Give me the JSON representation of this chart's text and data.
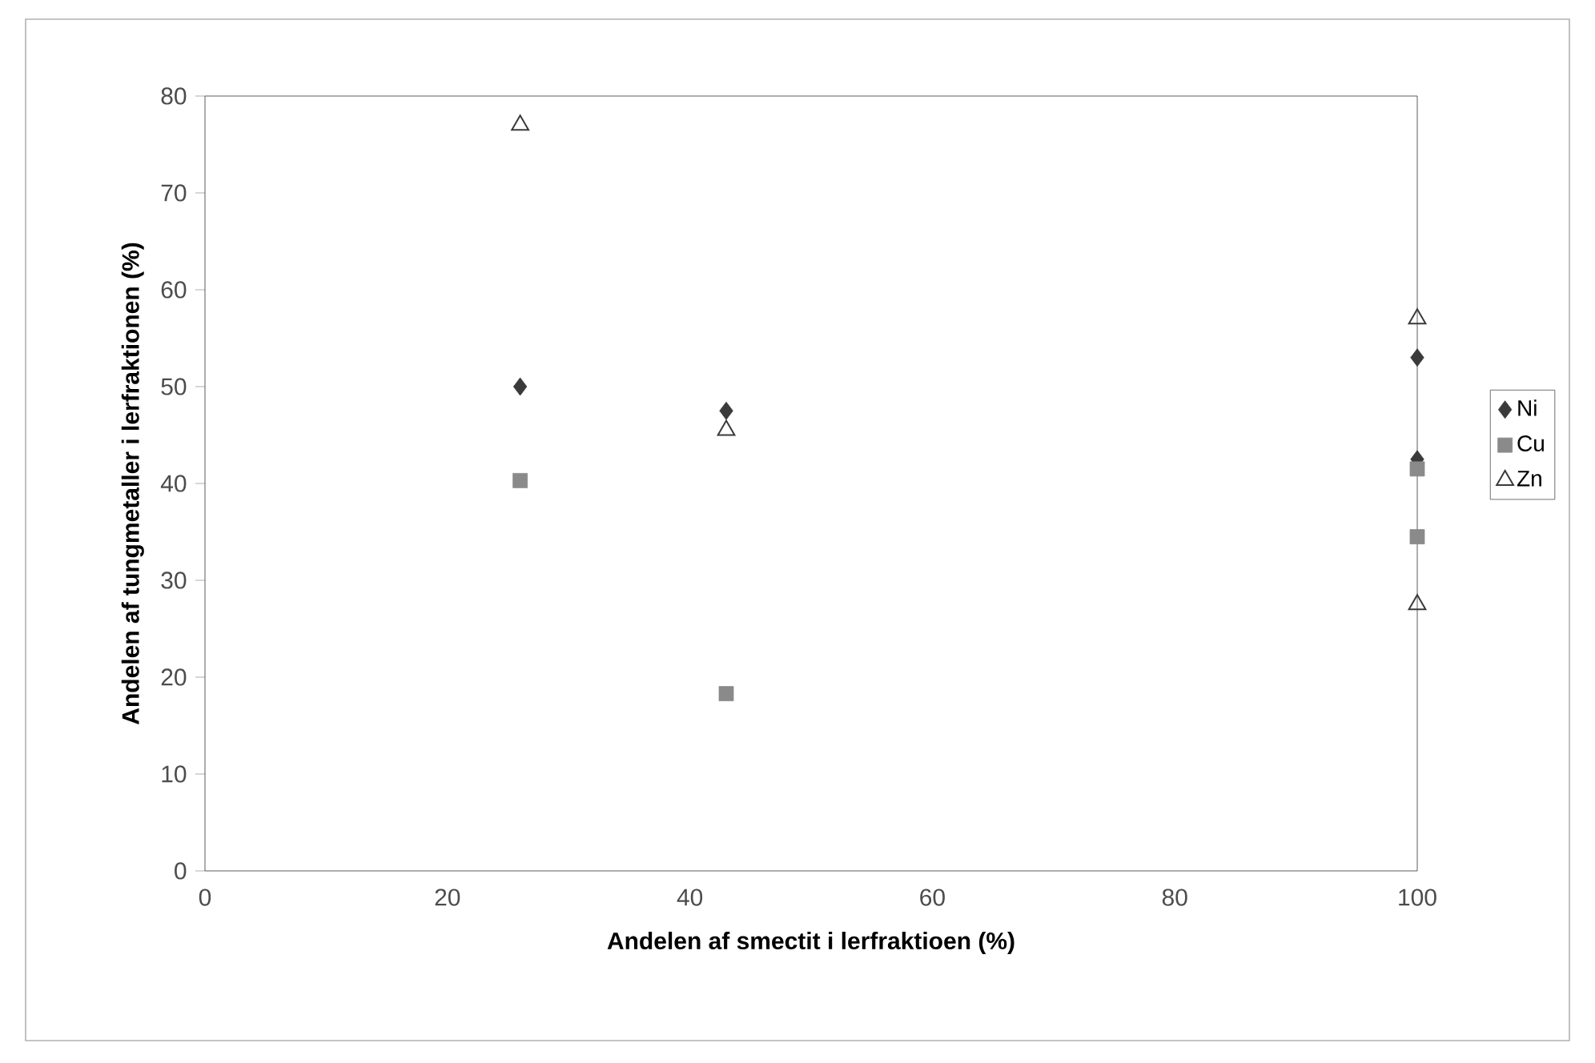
{
  "chart_data": {
    "type": "scatter",
    "xlabel": "Andelen af smectit i lerfraktioen (%)",
    "ylabel": "Andelen af tungmetaller i lerfraktionen (%)",
    "xlim": [
      0,
      100
    ],
    "xticks": [
      0,
      20,
      40,
      60,
      80,
      100
    ],
    "ylim": [
      0,
      80
    ],
    "yticks": [
      0,
      10,
      20,
      30,
      40,
      50,
      60,
      70,
      80
    ],
    "grid": false,
    "legend": "right",
    "series": [
      {
        "name": "Ni",
        "color": "#3a3a3a",
        "marker": "diamond",
        "x": [
          26,
          43,
          100,
          100
        ],
        "values": [
          50,
          47.5,
          53,
          42.5
        ]
      },
      {
        "name": "Cu",
        "color": "#8a8a8a",
        "marker": "square",
        "x": [
          26,
          43,
          100,
          100
        ],
        "values": [
          40.3,
          18.3,
          41.5,
          34.5
        ]
      },
      {
        "name": "Zn",
        "color": "#3a3a3a",
        "marker": "triangle",
        "x": [
          26,
          43,
          100,
          100
        ],
        "values": [
          77,
          45.5,
          57,
          27.5
        ]
      }
    ]
  }
}
